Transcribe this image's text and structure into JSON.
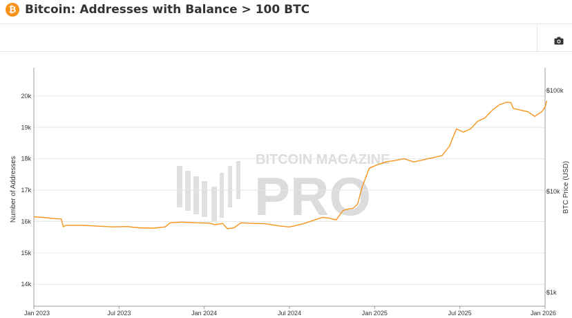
{
  "header": {
    "title": "Bitcoin: Addresses with Balance > 100 BTC",
    "logo_glyph": "₿",
    "logo_color": "#f7931a"
  },
  "toolbar": {
    "camera_icon": "camera-icon"
  },
  "watermark": {
    "line1": "BITCOIN MAGAZINE",
    "line2": "PRO"
  },
  "chart_data": {
    "type": "line",
    "title": "Bitcoin: Addresses with Balance > 100 BTC",
    "ylabel": "Number of Addresses",
    "y2label": "BTC Price (USD)",
    "ylim": [
      13300,
      20900
    ],
    "y2_scale": "log",
    "y2lim": [
      1000,
      200000
    ],
    "grid": true,
    "x_ticks": [
      "Jan 2023",
      "Jul 2023",
      "Jan 2024",
      "Jul 2024",
      "Jan 2025",
      "Jul 2025",
      "Jan 2026"
    ],
    "y_ticks": [
      {
        "label": "14k",
        "value": 14000
      },
      {
        "label": "15k",
        "value": 15000
      },
      {
        "label": "16k",
        "value": 16000
      },
      {
        "label": "17k",
        "value": 17000
      },
      {
        "label": "18k",
        "value": 18000
      },
      {
        "label": "19k",
        "value": 19000
      },
      {
        "label": "20k",
        "value": 20000
      }
    ],
    "y2_ticks": [
      {
        "label": "$1k",
        "value": 1000
      },
      {
        "label": "$10k",
        "value": 10000
      },
      {
        "label": "$100k",
        "value": 100000
      }
    ],
    "series": [
      {
        "color": "#f7931a",
        "x": [
          "2023-01-01",
          "2023-01-20",
          "2023-02-10",
          "2023-03-01",
          "2023-03-05",
          "2023-03-10",
          "2023-04-15",
          "2023-05-20",
          "2023-06-20",
          "2023-07-20",
          "2023-08-15",
          "2023-09-15",
          "2023-10-10",
          "2023-10-20",
          "2023-11-15",
          "2023-12-15",
          "2024-01-10",
          "2024-01-25",
          "2024-02-10",
          "2024-02-20",
          "2024-03-05",
          "2024-03-20",
          "2024-04-15",
          "2024-05-10",
          "2024-06-10",
          "2024-07-01",
          "2024-07-10",
          "2024-08-01",
          "2024-08-25",
          "2024-09-10",
          "2024-09-25",
          "2024-10-10",
          "2024-10-25",
          "2024-11-05",
          "2024-11-15",
          "2024-11-25",
          "2024-12-05",
          "2024-12-20",
          "2025-01-05",
          "2025-01-25",
          "2025-02-15",
          "2025-03-05",
          "2025-03-25",
          "2025-04-10",
          "2025-04-25",
          "2025-05-10",
          "2025-05-25",
          "2025-06-10",
          "2025-06-25",
          "2025-07-10",
          "2025-07-25",
          "2025-08-10",
          "2025-08-25",
          "2025-09-10",
          "2025-09-25",
          "2025-10-10",
          "2025-10-20",
          "2025-10-25",
          "2025-11-10",
          "2025-11-25",
          "2025-12-10",
          "2025-12-25",
          "2026-01-01",
          "2026-01-05"
        ],
        "values": [
          16150,
          16130,
          16100,
          16080,
          15830,
          15880,
          15880,
          15850,
          15830,
          15840,
          15800,
          15790,
          15830,
          15960,
          15980,
          15960,
          15950,
          15900,
          15940,
          15770,
          15800,
          15960,
          15940,
          15930,
          15860,
          15830,
          15850,
          15930,
          16050,
          16130,
          16110,
          16050,
          16350,
          16400,
          16420,
          16550,
          17100,
          17700,
          17800,
          17900,
          17950,
          18000,
          17900,
          17950,
          18000,
          18050,
          18100,
          18400,
          18950,
          18850,
          18950,
          19200,
          19300,
          19550,
          19720,
          19800,
          19790,
          19600,
          19550,
          19500,
          19350,
          19500,
          19650,
          19850
        ]
      }
    ]
  }
}
